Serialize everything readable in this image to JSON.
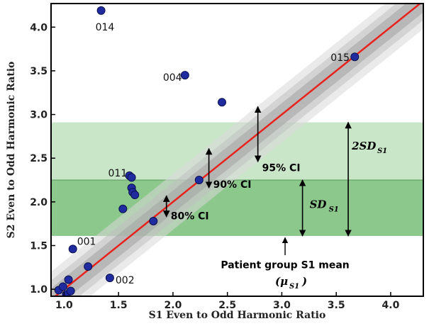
{
  "chart_data": {
    "type": "scatter",
    "xlabel": "S1 Even to Odd Harmonic Ratio",
    "ylabel": "S2 Even to Odd Harmonic Ratio",
    "xlim": [
      0.88,
      4.3
    ],
    "ylim": [
      0.92,
      4.27
    ],
    "xticks": [
      1.0,
      1.5,
      2.0,
      2.5,
      3.0,
      3.5,
      4.0
    ],
    "xtick_labels": [
      "1.0",
      "1.5",
      "2.0",
      "2.5",
      "3.0",
      "3.5",
      "4.0"
    ],
    "yticks": [
      1.0,
      1.5,
      2.0,
      2.5,
      3.0,
      3.5,
      4.0
    ],
    "ytick_labels": [
      "1.0",
      "1.5",
      "2.0",
      "2.5",
      "3.0",
      "3.5",
      "4.0"
    ],
    "grid": false,
    "colors": {
      "point": "#1f2b9e",
      "identity_line": "#e8231e",
      "band_dark": "#8cc78c",
      "band_light": "#c9e6c9",
      "ci_bands": [
        "#d9d9d9",
        "#bfbfbf",
        "#a3a3a3"
      ]
    },
    "identity_line": {
      "x": [
        0.88,
        4.3
      ],
      "y": [
        0.88,
        4.3
      ]
    },
    "ci_bands": [
      {
        "label": "95% CI",
        "halfwidth": 0.32
      },
      {
        "label": "90% CI",
        "halfwidth": 0.22
      },
      {
        "label": "80% CI",
        "halfwidth": 0.13
      }
    ],
    "horizontal_bands": [
      {
        "name": "SD",
        "y0": 1.61,
        "y1": 2.25
      },
      {
        "name": "2SD",
        "y0": 2.25,
        "y1": 2.91
      }
    ],
    "points": [
      {
        "x": 0.95,
        "y": 0.99,
        "label": ""
      },
      {
        "x": 0.99,
        "y": 1.03,
        "label": ""
      },
      {
        "x": 1.02,
        "y": 0.94,
        "label": ""
      },
      {
        "x": 1.04,
        "y": 1.11,
        "label": ""
      },
      {
        "x": 1.06,
        "y": 0.98,
        "label": ""
      },
      {
        "x": 1.08,
        "y": 1.46,
        "label": "001"
      },
      {
        "x": 1.22,
        "y": 1.26,
        "label": ""
      },
      {
        "x": 1.42,
        "y": 1.13,
        "label": "002"
      },
      {
        "x": 1.34,
        "y": 4.19,
        "label": "014"
      },
      {
        "x": 1.54,
        "y": 1.92,
        "label": ""
      },
      {
        "x": 1.6,
        "y": 2.3,
        "label": "011"
      },
      {
        "x": 1.62,
        "y": 2.28,
        "label": ""
      },
      {
        "x": 1.62,
        "y": 2.16,
        "label": ""
      },
      {
        "x": 1.63,
        "y": 2.11,
        "label": ""
      },
      {
        "x": 1.65,
        "y": 2.08,
        "label": ""
      },
      {
        "x": 1.82,
        "y": 1.78,
        "label": ""
      },
      {
        "x": 2.11,
        "y": 3.45,
        "label": "004"
      },
      {
        "x": 2.24,
        "y": 2.25,
        "label": ""
      },
      {
        "x": 2.45,
        "y": 3.14,
        "label": ""
      },
      {
        "x": 3.67,
        "y": 3.66,
        "label": "015"
      }
    ],
    "annotations": {
      "ci95": "95% CI",
      "ci90": "90% CI",
      "ci80": "80% CI",
      "sd_main": "SD",
      "sd_sub": "S1",
      "twosd_prefix": "2",
      "twosd_main": "SD",
      "twosd_sub": "S1",
      "mean_text": "Patient group S1 mean",
      "mu_open": "(",
      "mu_main": "μ",
      "mu_sub": "S1",
      "mu_close": ")"
    }
  }
}
